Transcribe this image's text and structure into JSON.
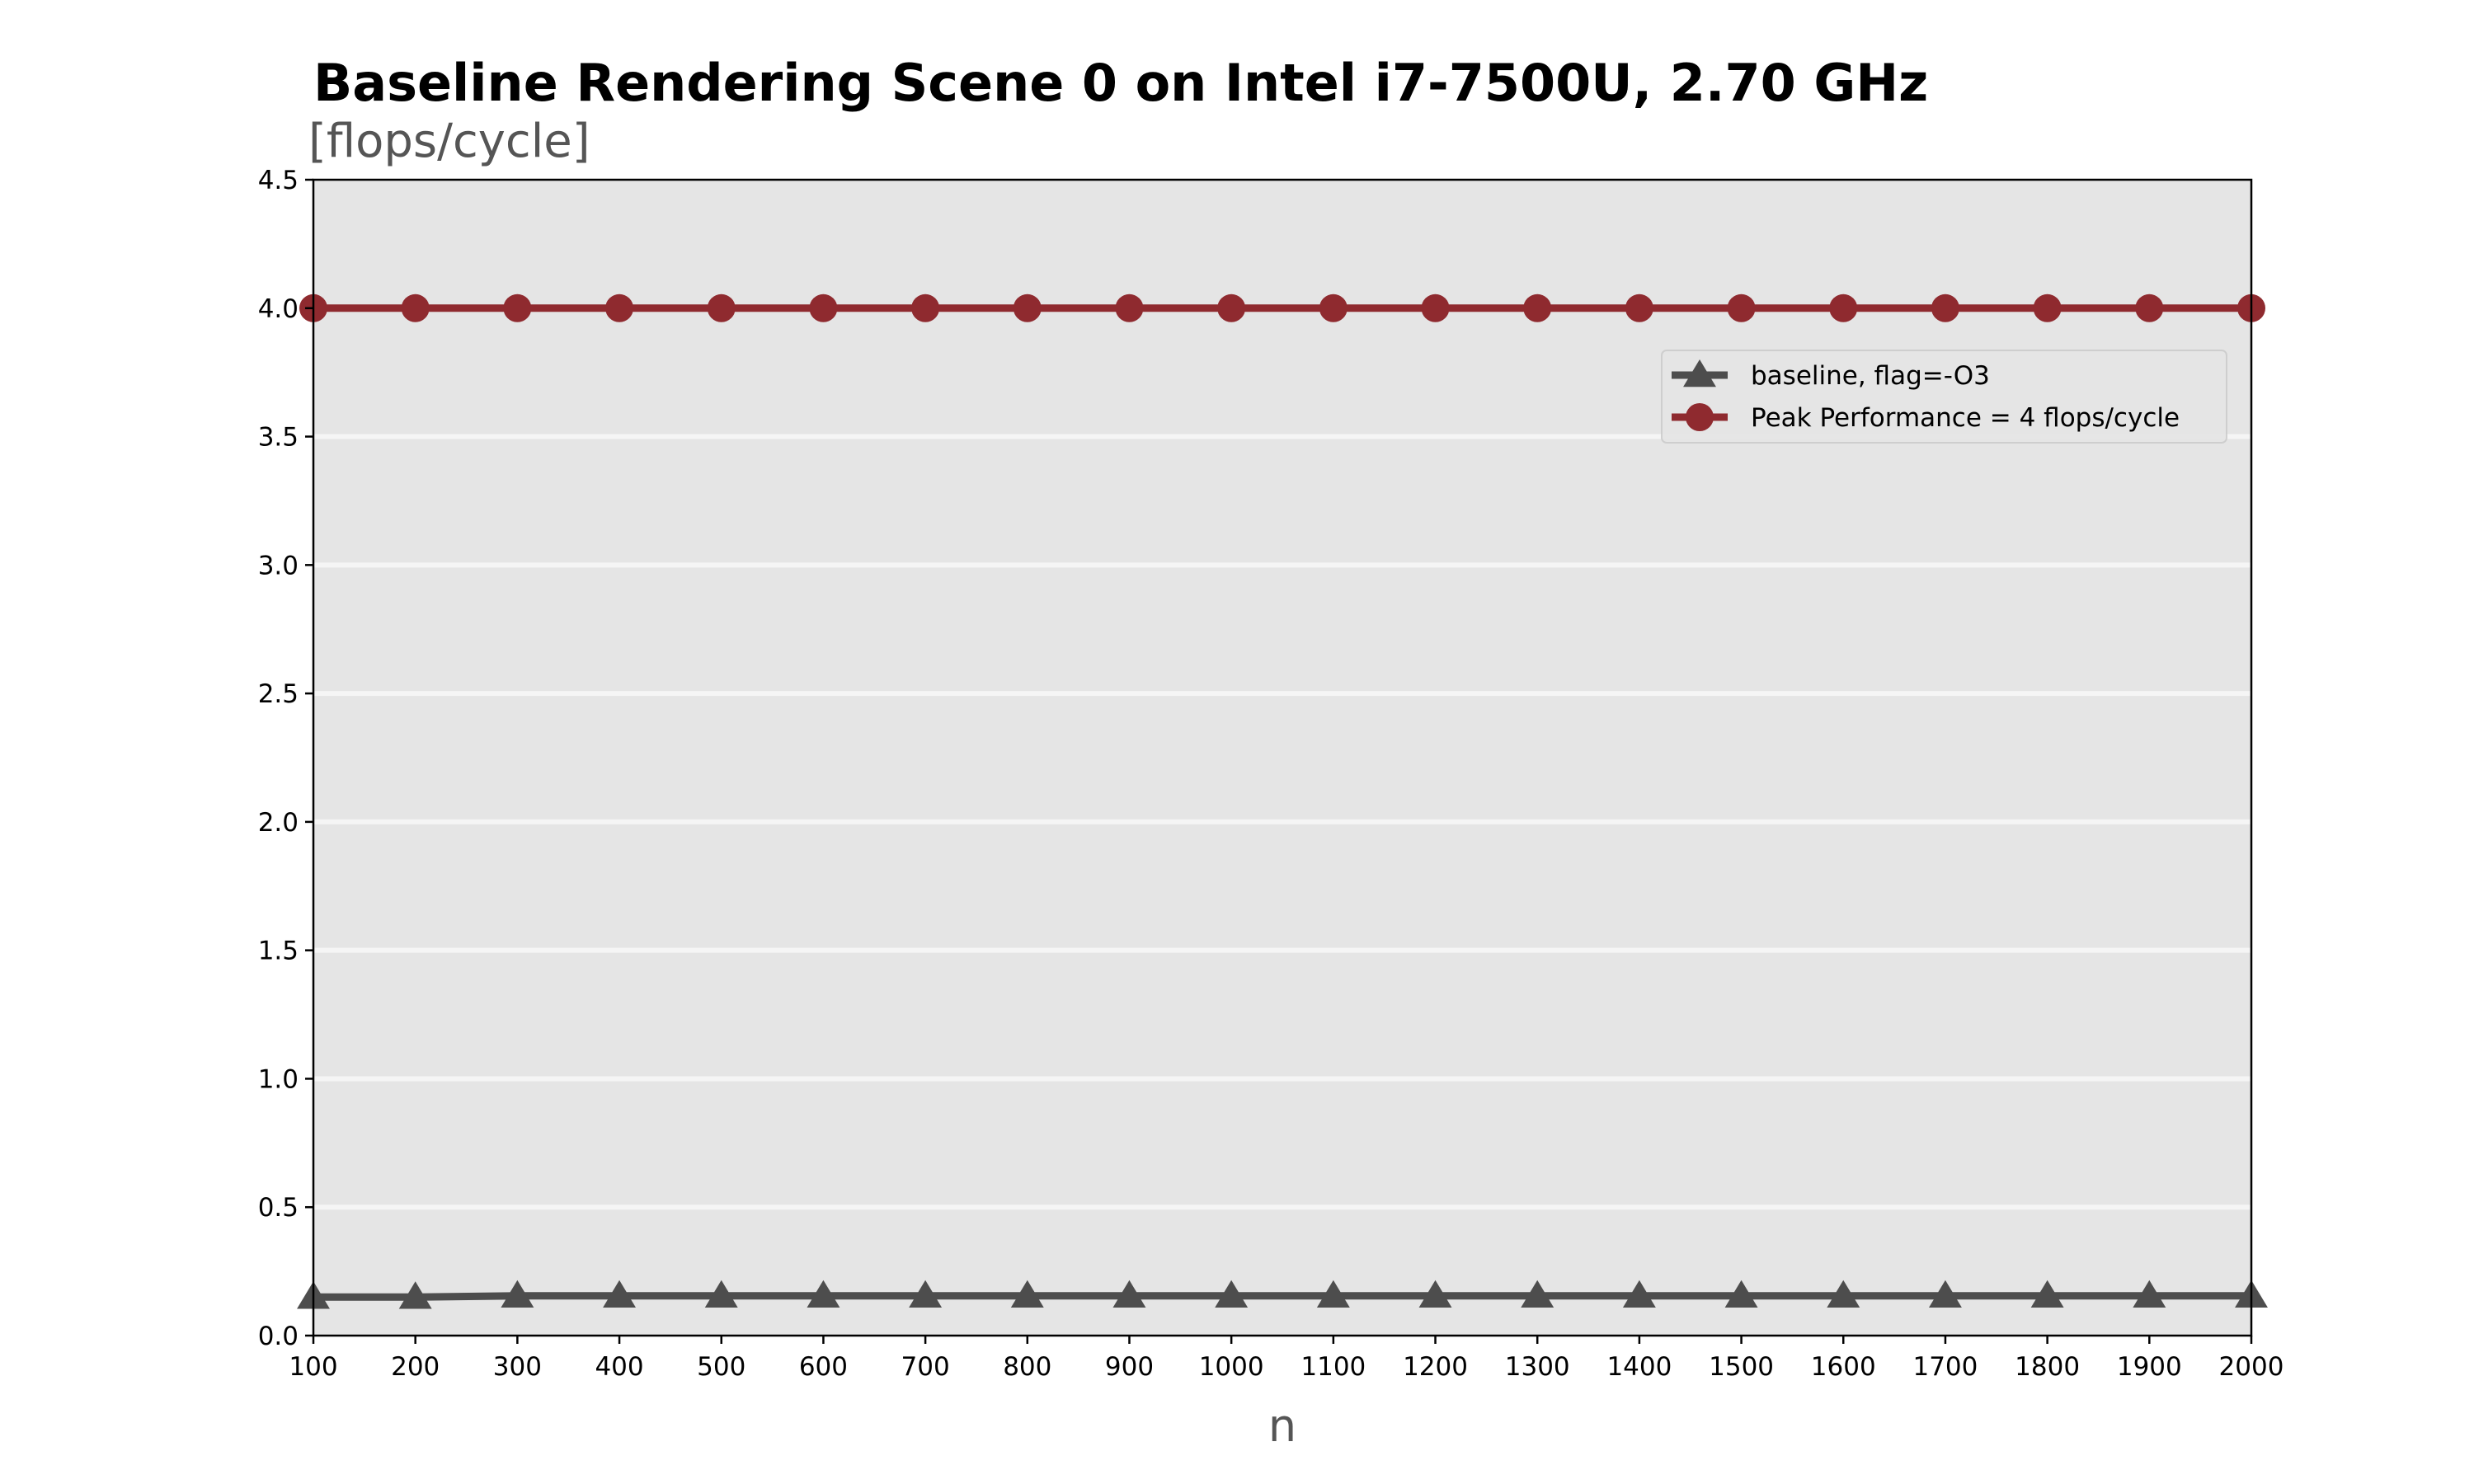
{
  "chart_data": {
    "type": "line",
    "title": "Baseline Rendering Scene 0 on Intel i7-7500U, 2.70 GHz",
    "subtitle": "[flops/cycle]",
    "xlabel": "n",
    "ylabel": "",
    "x": [
      100,
      200,
      300,
      400,
      500,
      600,
      700,
      800,
      900,
      1000,
      1100,
      1200,
      1300,
      1400,
      1500,
      1600,
      1700,
      1800,
      1900,
      2000
    ],
    "xlim": [
      100,
      2000
    ],
    "ylim": [
      0,
      4.5
    ],
    "x_ticks": [
      "100",
      "200",
      "300",
      "400",
      "500",
      "600",
      "700",
      "800",
      "900",
      "1000",
      "1100",
      "1200",
      "1300",
      "1400",
      "1500",
      "1600",
      "1700",
      "1800",
      "1900",
      "2000"
    ],
    "y_ticks": [
      "0.0",
      "0.5",
      "1.0",
      "1.5",
      "2.0",
      "2.5",
      "3.0",
      "3.5",
      "4.0",
      "4.5"
    ],
    "grid": "horizontal",
    "legend_position": "upper-right",
    "series": [
      {
        "name": "baseline, flag=-O3",
        "marker": "triangle",
        "color": "#4d4d4d",
        "values": [
          0.15,
          0.15,
          0.155,
          0.155,
          0.155,
          0.155,
          0.155,
          0.155,
          0.155,
          0.155,
          0.155,
          0.155,
          0.155,
          0.155,
          0.155,
          0.155,
          0.155,
          0.155,
          0.155,
          0.155
        ]
      },
      {
        "name": "Peak Performance = 4 flops/cycle",
        "marker": "circle",
        "color": "#8f2a2f",
        "values": [
          4,
          4,
          4,
          4,
          4,
          4,
          4,
          4,
          4,
          4,
          4,
          4,
          4,
          4,
          4,
          4,
          4,
          4,
          4,
          4
        ]
      }
    ],
    "colors": {
      "plot_background": "#e5e5e5",
      "gridline": "#f5f5f5"
    }
  }
}
